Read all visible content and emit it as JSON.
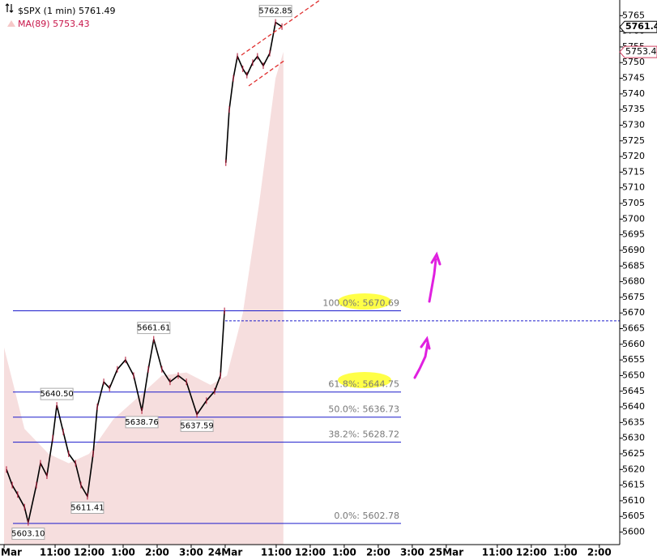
{
  "chart_data": {
    "type": "line",
    "title": "$SPX (1 min) 5761.49",
    "ylim": [
      5596,
      5770
    ],
    "yticks": [
      5600,
      5605,
      5610,
      5615,
      5620,
      5625,
      5630,
      5635,
      5640,
      5645,
      5650,
      5655,
      5660,
      5665,
      5670,
      5675,
      5680,
      5685,
      5690,
      5695,
      5700,
      5705,
      5710,
      5715,
      5720,
      5725,
      5730,
      5735,
      5740,
      5745,
      5750,
      5755,
      5760,
      5765
    ],
    "xlim": [
      -0.12,
      18.1
    ],
    "xticks": [
      {
        "value": 0,
        "label": "Mar"
      },
      {
        "value": 1.5,
        "label": "11:00"
      },
      {
        "value": 2.5,
        "label": "12:00"
      },
      {
        "value": 3.5,
        "label": "1:00"
      },
      {
        "value": 4.5,
        "label": "2:00"
      },
      {
        "value": 5.5,
        "label": "3:00"
      },
      {
        "value": 6.5,
        "label": "24Mar"
      },
      {
        "value": 8,
        "label": "11:00"
      },
      {
        "value": 9,
        "label": "12:00"
      },
      {
        "value": 10,
        "label": "1:00"
      },
      {
        "value": 11,
        "label": "2:00"
      },
      {
        "value": 12,
        "label": "3:00"
      },
      {
        "value": 13,
        "label": "25Mar"
      },
      {
        "value": 14.5,
        "label": "11:00"
      },
      {
        "value": 15.5,
        "label": "12:00"
      },
      {
        "value": 16.5,
        "label": "1:00"
      },
      {
        "value": 17.5,
        "label": "2:00"
      }
    ],
    "series": [
      {
        "name": "MA(89) 5753.43",
        "color": "#c8154a",
        "fill": "#f6dede",
        "x": [
          0,
          0.6,
          1.31,
          1.9,
          2.5,
          3.21,
          3.93,
          4.64,
          5.36,
          6.07,
          6.55,
          7.02,
          7.5,
          7.98,
          8.21
        ],
        "values": [
          5659,
          5633,
          5625,
          5622,
          5625,
          5636,
          5643,
          5650,
          5651,
          5647,
          5650,
          5670,
          5705,
          5745,
          5753.43
        ]
      },
      {
        "color": "#000000",
        "x": [
          0.07,
          0.24,
          0.4,
          0.6,
          0.71,
          0.95,
          1.07,
          1.26,
          1.43,
          1.55,
          1.74,
          1.9,
          2.1,
          2.26,
          2.45,
          2.62,
          2.74,
          2.93,
          3.1,
          3.33,
          3.57,
          3.81,
          4.05,
          4.24,
          4.4,
          4.64,
          4.88,
          5.12,
          5.36,
          5.67,
          5.95,
          6.19,
          6.36,
          6.48,
          6.5,
          6.52,
          6.62,
          6.74,
          6.86,
          7.02,
          7.14,
          7.31,
          7.45,
          7.62,
          7.81,
          7.98,
          8.17
        ],
        "values": [
          5620,
          5615,
          5612,
          5608,
          5603.1,
          5615,
          5622,
          5618,
          5630,
          5640.5,
          5632,
          5625,
          5622,
          5615,
          5611.41,
          5625,
          5640,
          5648,
          5646,
          5652,
          5655,
          5650,
          5638.76,
          5652,
          5661.61,
          5652,
          5648,
          5650,
          5648,
          5637.59,
          5642,
          5645,
          5650,
          5670.69,
          null,
          5718,
          5735,
          5745,
          5752,
          5748,
          5746,
          5750,
          5752,
          5749,
          5753,
          5762.85,
          5761.49
        ]
      }
    ],
    "price_labels": [
      {
        "value": 5762.85,
        "label": "5762.85",
        "x": 7.98
      },
      {
        "value": 5661.61,
        "label": "5661.61",
        "x": 4.4
      },
      {
        "value": 5640.5,
        "label": "5640.50",
        "x": 1.55
      },
      {
        "value": 5638.76,
        "label": "5638.76",
        "x": 4.05
      },
      {
        "value": 5637.59,
        "label": "5637.59",
        "x": 5.67
      },
      {
        "value": 5611.41,
        "label": "5611.41",
        "x": 2.45
      },
      {
        "value": 5603.1,
        "label": "5603.10",
        "x": 0.71
      }
    ],
    "fib_levels": [
      {
        "value": 5670.69,
        "label": "100.0%: 5670.69"
      },
      {
        "value": 5644.75,
        "label": "61.8%: 5644.75"
      },
      {
        "value": 5636.73,
        "label": "50.0%: 5636.73"
      },
      {
        "value": 5628.72,
        "label": "38.2%: 5628.72"
      },
      {
        "value": 5602.78,
        "label": "0.0%: 5602.78"
      }
    ],
    "last_price_tags": [
      {
        "value": 5761.4,
        "label": "5761.4"
      },
      {
        "value": 5753.4,
        "label": "5753.4"
      }
    ],
    "reference_line": 5667.5
  }
}
